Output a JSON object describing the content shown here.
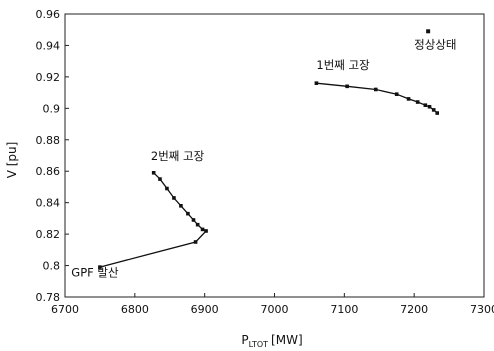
{
  "chart_data": {
    "type": "line",
    "title": "",
    "xlabel_main": "P",
    "xlabel_sub": "LTOT",
    "xlabel_unit": "[MW]",
    "ylabel": "V [pu]",
    "xlim": [
      6700,
      7300
    ],
    "ylim": [
      0.78,
      0.96
    ],
    "x_ticks": [
      "6700",
      "6800",
      "6900",
      "7000",
      "7100",
      "7200",
      "7300"
    ],
    "y_ticks": [
      "0.78",
      "0.8",
      "0.82",
      "0.84",
      "0.86",
      "0.88",
      "0.9",
      "0.92",
      "0.94",
      "0.96"
    ],
    "grid": false,
    "legend": "none",
    "series": [
      {
        "points": [
          {
            "x": 7060,
            "y": 0.916
          },
          {
            "x": 7104,
            "y": 0.914
          },
          {
            "x": 7145,
            "y": 0.912
          },
          {
            "x": 7175,
            "y": 0.909
          },
          {
            "x": 7192,
            "y": 0.906
          },
          {
            "x": 7205,
            "y": 0.904
          },
          {
            "x": 7216,
            "y": 0.902
          },
          {
            "x": 7222,
            "y": 0.901
          },
          {
            "x": 7228,
            "y": 0.899
          },
          {
            "x": 7233,
            "y": 0.897
          }
        ]
      },
      {
        "points": [
          {
            "x": 6827,
            "y": 0.859
          },
          {
            "x": 6836,
            "y": 0.855
          },
          {
            "x": 6846,
            "y": 0.849
          },
          {
            "x": 6856,
            "y": 0.843
          },
          {
            "x": 6866,
            "y": 0.838
          },
          {
            "x": 6876,
            "y": 0.833
          },
          {
            "x": 6884,
            "y": 0.829
          },
          {
            "x": 6890,
            "y": 0.826
          },
          {
            "x": 6897,
            "y": 0.823
          },
          {
            "x": 6902,
            "y": 0.822
          },
          {
            "x": 6887,
            "y": 0.815
          },
          {
            "x": 6750,
            "y": 0.799
          }
        ]
      }
    ],
    "single_points": [
      {
        "x": 7220,
        "y": 0.949
      }
    ],
    "annotations": [
      {
        "text": "1번째 고장",
        "x": 7060,
        "y": 0.925
      },
      {
        "text": "2번째 고장",
        "x": 6823,
        "y": 0.867
      },
      {
        "text": "정상상태",
        "x": 7200,
        "y": 0.938
      },
      {
        "text": "GPF 발산",
        "x": 6709,
        "y": 0.793
      }
    ]
  }
}
